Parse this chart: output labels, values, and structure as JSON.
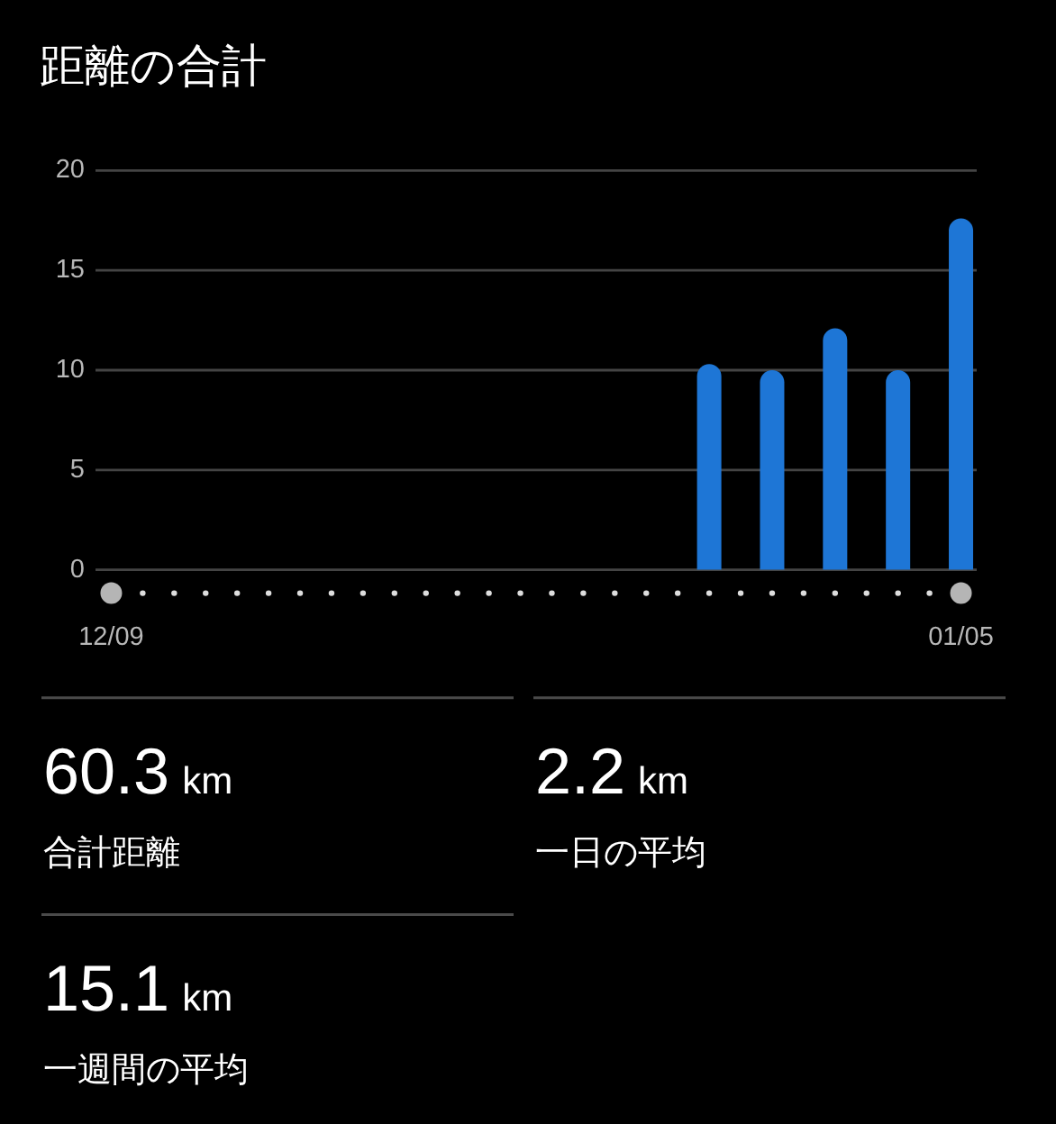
{
  "chart_data": [
    {
      "type": "bar",
      "title": "距離の合計",
      "categories": [
        "12/09",
        null,
        null,
        null,
        null,
        null,
        null,
        null,
        null,
        null,
        null,
        null,
        null,
        null,
        null,
        null,
        null,
        null,
        null,
        null,
        null,
        null,
        null,
        null,
        null,
        null,
        null,
        "01/05"
      ],
      "values": [
        null,
        null,
        null,
        null,
        null,
        null,
        null,
        null,
        null,
        null,
        null,
        null,
        null,
        null,
        null,
        null,
        null,
        null,
        null,
        10.3,
        null,
        10.0,
        null,
        12.1,
        null,
        10.0,
        null,
        17.6
      ],
      "color": "#1e76d6",
      "ylim": [
        0,
        20
      ],
      "yticks": [
        0,
        5,
        10,
        15,
        20
      ],
      "grid": "y"
    },
    {
      "type": "other",
      "annotations": [
        "60.3",
        "km",
        "合計距離",
        "2.2",
        "km",
        "一日の平均",
        "15.1",
        "km",
        "一週間の平均"
      ]
    }
  ]
}
